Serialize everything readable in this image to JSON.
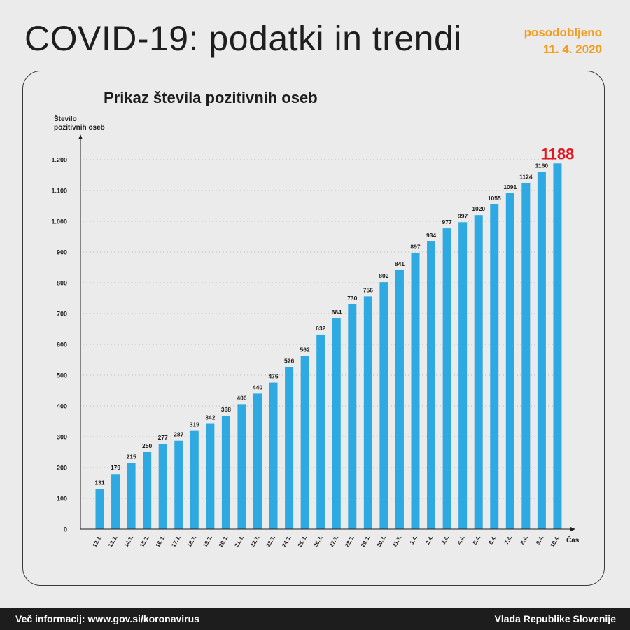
{
  "header": {
    "title": "COVID-19: podatki in trendi",
    "updated_label": "posodobljeno",
    "updated_date": "11. 4. 2020"
  },
  "chart_data": {
    "type": "bar",
    "title": "Prikaz števila pozitivnih oseb",
    "ylabel_line1": "Število",
    "ylabel_line2": "pozitivnih oseb",
    "xlabel": "Čas",
    "ylim": [
      0,
      1200
    ],
    "yticks": [
      0,
      100,
      200,
      300,
      400,
      500,
      600,
      700,
      800,
      900,
      1000,
      1100,
      1200
    ],
    "ytick_labels": [
      "0",
      "100",
      "200",
      "300",
      "400",
      "500",
      "600",
      "700",
      "800",
      "900",
      "1.000",
      "1.100",
      "1.200"
    ],
    "grid": true,
    "categories": [
      "12.3.",
      "13.3.",
      "14.3.",
      "15.3.",
      "16.3.",
      "17.3.",
      "18.3.",
      "19.3.",
      "20.3.",
      "21.3.",
      "22.3.",
      "23.3.",
      "24.3.",
      "25.3.",
      "26.3.",
      "27.3.",
      "28.3.",
      "29.3.",
      "30.3.",
      "31.3.",
      "1.4.",
      "2.4.",
      "3.4.",
      "4.4.",
      "5.4.",
      "6.4.",
      "7.4.",
      "8.4.",
      "9.4.",
      "10.4."
    ],
    "values": [
      131,
      179,
      215,
      250,
      277,
      287,
      319,
      342,
      368,
      406,
      440,
      476,
      526,
      562,
      632,
      684,
      730,
      756,
      802,
      841,
      897,
      934,
      977,
      997,
      1020,
      1055,
      1091,
      1124,
      1160,
      1188
    ],
    "highlight_value_label": "1188",
    "bar_color": "#2fa9e1",
    "highlight_color": "#e8141d"
  },
  "footer": {
    "more_info": "Več informacij: www.gov.si/koronavirus",
    "government": "Vlada Republike Slovenije"
  }
}
